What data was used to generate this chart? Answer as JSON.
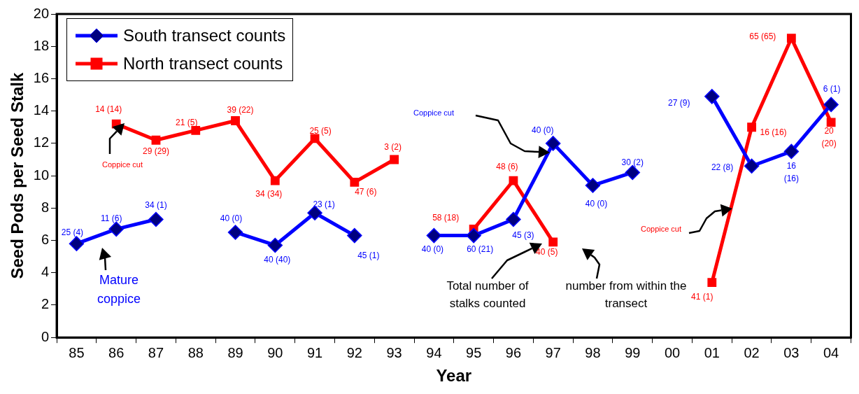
{
  "chart_data": {
    "type": "line",
    "xlabel": "Year",
    "ylabel": "Seed Pods per Seed Stalk",
    "categories": [
      "85",
      "86",
      "87",
      "88",
      "89",
      "90",
      "91",
      "92",
      "93",
      "94",
      "95",
      "96",
      "97",
      "98",
      "99",
      "00",
      "01",
      "02",
      "03",
      "04"
    ],
    "ylim": [
      0,
      20
    ],
    "yticks": [
      0,
      2,
      4,
      6,
      8,
      10,
      12,
      14,
      16,
      18,
      20
    ],
    "grid": false,
    "legend": "top left",
    "line_style": "solid",
    "series": [
      {
        "name": "South transect counts",
        "color": "#0000ff",
        "marker": "diamond",
        "values": [
          5.8,
          6.7,
          7.3,
          null,
          6.5,
          5.7,
          7.7,
          6.3,
          null,
          6.3,
          6.3,
          7.3,
          12.0,
          9.4,
          10.2,
          null,
          14.9,
          10.6,
          11.5,
          14.4
        ]
      },
      {
        "name": "North transect counts",
        "color": "#ff0000",
        "marker": "square",
        "values": [
          null,
          13.2,
          12.2,
          12.8,
          13.4,
          9.7,
          12.3,
          9.6,
          11.0,
          null,
          6.7,
          9.7,
          5.9,
          null,
          null,
          null,
          3.4,
          13.0,
          18.5,
          13.3
        ]
      }
    ],
    "annotations": [
      {
        "text": "25 (4)",
        "x": "85",
        "y": 5.8
      },
      {
        "text": "11 (6)",
        "x": "86",
        "y": 6.7
      },
      {
        "text": "34 (1)",
        "x": "87",
        "y": 7.3
      },
      {
        "text": "40 (0)",
        "x": "89",
        "y": 6.5
      },
      {
        "text": "40 (40)",
        "x": "90",
        "y": 5.7
      },
      {
        "text": "23 (1)",
        "x": "91",
        "y": 7.7
      },
      {
        "text": "45 (1)",
        "x": "92",
        "y": 6.3
      },
      {
        "text": "40 (0)",
        "x": "94",
        "y": 6.3
      },
      {
        "text": "60 (21)",
        "x": "95",
        "y": 6.3
      },
      {
        "text": "45 (3)",
        "x": "96",
        "y": 7.3
      },
      {
        "text": "40 (0)",
        "x": "97",
        "y": 12.0
      },
      {
        "text": "40 (0)",
        "x": "98",
        "y": 9.4
      },
      {
        "text": "30 (2)",
        "x": "99",
        "y": 10.2
      },
      {
        "text": "27 (9)",
        "x": "01",
        "y": 14.9
      },
      {
        "text": "22 (8)",
        "x": "02",
        "y": 10.6
      },
      {
        "text": "16 (16)",
        "x": "03",
        "y": 11.5
      },
      {
        "text": "6 (1)",
        "x": "04",
        "y": 14.4
      },
      {
        "text": "14 (14)",
        "x": "86",
        "y": 13.2
      },
      {
        "text": "29 (29)",
        "x": "87",
        "y": 12.2
      },
      {
        "text": "21 (5)",
        "x": "88",
        "y": 12.8
      },
      {
        "text": "39 (22)",
        "x": "89",
        "y": 13.4
      },
      {
        "text": "34 (34)",
        "x": "90",
        "y": 9.7
      },
      {
        "text": "25 (5)",
        "x": "91",
        "y": 12.3
      },
      {
        "text": "47 (6)",
        "x": "92",
        "y": 9.6
      },
      {
        "text": "3 (2)",
        "x": "93",
        "y": 11.0
      },
      {
        "text": "58 (18)",
        "x": "95",
        "y": 6.7
      },
      {
        "text": "48 (6)",
        "x": "96",
        "y": 9.7
      },
      {
        "text": "40 (5)",
        "x": "97",
        "y": 5.9
      },
      {
        "text": "41 (1)",
        "x": "01",
        "y": 3.4
      },
      {
        "text": "16 (16)",
        "x": "02",
        "y": 13.0
      },
      {
        "text": "65 (65)",
        "x": "03",
        "y": 18.5
      },
      {
        "text": "20 (20)",
        "x": "04",
        "y": 13.3
      },
      "Coppice cut",
      "Coppice cut",
      "Mature coppice",
      "Total number of stalks counted",
      "number from within the transect",
      "Coppice cut"
    ]
  }
}
